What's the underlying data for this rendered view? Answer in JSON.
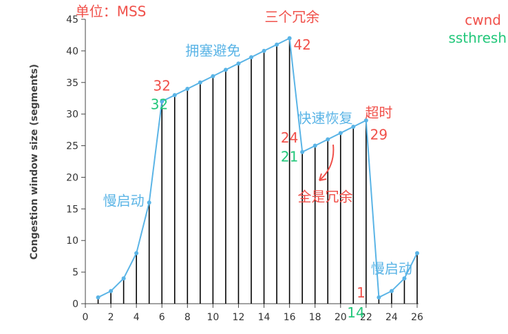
{
  "chart_data": {
    "type": "line",
    "ylabel": "Congestion window size (segments)",
    "xlim": [
      0,
      26
    ],
    "ylim": [
      0,
      45
    ],
    "x_ticks": [
      "0",
      "2",
      "4",
      "6",
      "8",
      "10",
      "12",
      "14",
      "16",
      "18",
      "20",
      "22",
      "24",
      "26"
    ],
    "y_ticks": [
      "0",
      "5",
      "10",
      "15",
      "20",
      "25",
      "30",
      "35",
      "40",
      "45"
    ],
    "series": [
      {
        "x": [
          1,
          2,
          3,
          4,
          5,
          6,
          7,
          8,
          9,
          10,
          11,
          12,
          13,
          14,
          15,
          16,
          17,
          18,
          19,
          20,
          21,
          22,
          23,
          24,
          25,
          26
        ],
        "values": [
          1,
          2,
          4,
          8,
          16,
          32,
          33,
          34,
          35,
          36,
          37,
          38,
          39,
          40,
          41,
          42,
          24,
          25,
          26,
          27,
          28,
          29,
          1,
          2,
          4,
          8
        ],
        "color": "#5ab4e6"
      }
    ],
    "annotations": [
      {
        "id": "unit",
        "text": "单位：MSS",
        "color": "#f0504a",
        "x": 2.0,
        "y": 45.5
      },
      {
        "id": "legend-cwnd",
        "text": "cwnd",
        "color": "#f0504a"
      },
      {
        "id": "legend-ssthresh",
        "text": "ssthresh",
        "color": "#22c77a"
      },
      {
        "id": "triple-dup",
        "text": "三个冗余",
        "color": "#f0504a",
        "x": 16.2,
        "y": 44.6
      },
      {
        "id": "val-42",
        "text": "42",
        "color": "#f0504a",
        "x": 17.0,
        "y": 40.2
      },
      {
        "id": "cong-avoid",
        "text": "拥塞避免",
        "color": "#5ab4e6",
        "x": 10.0,
        "y": 39.3
      },
      {
        "id": "val-32-cwnd",
        "text": "32",
        "color": "#f0504a",
        "x": 6.0,
        "y": 33.7
      },
      {
        "id": "val-32-ssthresh",
        "text": "32",
        "color": "#22c77a",
        "x": 5.8,
        "y": 30.8
      },
      {
        "id": "fast-recovery",
        "text": "快速恢复",
        "color": "#5ab4e6",
        "x": 18.8,
        "y": 28.6
      },
      {
        "id": "timeout",
        "text": "超时",
        "color": "#f0504a",
        "x": 23.0,
        "y": 29.5
      },
      {
        "id": "val-29",
        "text": "29",
        "color": "#f0504a",
        "x": 23.0,
        "y": 26.0
      },
      {
        "id": "val-24",
        "text": "24",
        "color": "#f0504a",
        "x": 16.0,
        "y": 25.5
      },
      {
        "id": "val-21",
        "text": "21",
        "color": "#22c77a",
        "x": 16.0,
        "y": 22.5
      },
      {
        "id": "all-dup",
        "text": "全是冗余",
        "color": "#f0504a",
        "x": 18.8,
        "y": 16.2
      },
      {
        "id": "slow-start-1",
        "text": "慢启动",
        "color": "#5ab4e6",
        "x": 3.0,
        "y": 15.5
      },
      {
        "id": "slow-start-2",
        "text": "慢启动",
        "color": "#5ab4e6",
        "x": 24.0,
        "y": 4.8
      },
      {
        "id": "val-1",
        "text": "1",
        "color": "#f0504a",
        "x": 21.6,
        "y": 1.0
      },
      {
        "id": "val-14",
        "text": "14",
        "color": "#22c77a",
        "x": 21.2,
        "y": -2.2
      }
    ],
    "grid": false
  }
}
